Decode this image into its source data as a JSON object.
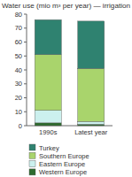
{
  "chart_data": {
    "type": "bar",
    "stacked": true,
    "title": "Water use (mio m³ per year) — irrigation",
    "categories": [
      "1990s",
      "Latest year"
    ],
    "series": [
      {
        "name": "Western Europe",
        "color": "#2f6b2f",
        "values": [
          2,
          1
        ]
      },
      {
        "name": "Eastern Europe",
        "color": "#ccf0ee",
        "values": [
          9,
          2
        ]
      },
      {
        "name": "Southern Europe",
        "color": "#a9d46c",
        "values": [
          40,
          38
        ]
      },
      {
        "name": "Turkey",
        "color": "#2f8270",
        "values": [
          25,
          34
        ]
      }
    ],
    "ylim": [
      0,
      80
    ],
    "yticks": [
      0,
      10,
      20,
      30,
      40,
      50,
      60,
      70,
      80
    ],
    "grid": false,
    "legend": "bottom"
  }
}
